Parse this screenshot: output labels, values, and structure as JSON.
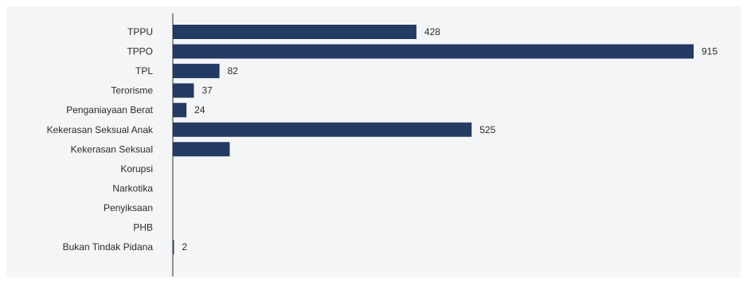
{
  "chart_data": {
    "type": "bar",
    "orientation": "horizontal",
    "title": "",
    "xlabel": "",
    "ylabel": "",
    "xlim": [
      0,
      915
    ],
    "grid": false,
    "legend": "none",
    "bar_color": "#233a63",
    "categories": [
      "TPPU",
      "TPPO",
      "TPL",
      "Terorisme",
      "Penganiayaan Berat",
      "Kekerasan Seksual Anak",
      "Kekerasan Seksual",
      "Korupsi",
      "Narkotika",
      "Penyiksaan",
      "PHB",
      "Bukan Tindak Pidana"
    ],
    "values": [
      428,
      915,
      82,
      37,
      24,
      525,
      100,
      0,
      0,
      0,
      0,
      2
    ],
    "data_labels": [
      "428",
      "915",
      "82",
      "37",
      "24",
      "525",
      "",
      "",
      "",
      "",
      "",
      "2"
    ]
  }
}
